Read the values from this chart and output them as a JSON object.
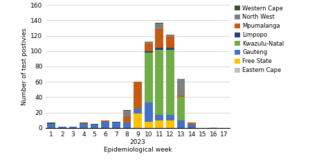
{
  "weeks": [
    1,
    2,
    3,
    4,
    5,
    6,
    7,
    8,
    9,
    10,
    11,
    12,
    13,
    14,
    15,
    16,
    17
  ],
  "provinces": [
    "Eastern Cape",
    "Free State",
    "Gauteng",
    "Kwazulu-Natal",
    "Limpopo",
    "Mpumalanga",
    "North West",
    "Western Cape"
  ],
  "colors": [
    "#bfbfbf",
    "#ffc000",
    "#4472c4",
    "#70ad47",
    "#264478",
    "#c55a11",
    "#7f7f7f",
    "#375623"
  ],
  "data": {
    "Eastern Cape": [
      0,
      0,
      0,
      0,
      0,
      0,
      0,
      0,
      0,
      0,
      0,
      0,
      0,
      0,
      0,
      1,
      0
    ],
    "Free State": [
      0,
      0,
      0,
      0,
      0,
      0,
      0,
      0,
      19,
      8,
      10,
      10,
      0,
      0,
      0,
      0,
      0
    ],
    "Gauteng": [
      5,
      2,
      2,
      5,
      4,
      8,
      7,
      7,
      6,
      25,
      7,
      7,
      10,
      4,
      0,
      0,
      0
    ],
    "Kwazulu-Natal": [
      0,
      0,
      0,
      0,
      0,
      0,
      0,
      0,
      0,
      65,
      85,
      85,
      30,
      0,
      0,
      0,
      0
    ],
    "Limpopo": [
      0,
      0,
      0,
      0,
      0,
      0,
      0,
      0,
      0,
      2,
      2,
      2,
      0,
      0,
      0,
      0,
      0
    ],
    "Mpumalanga": [
      0,
      0,
      0,
      1,
      0,
      2,
      0,
      8,
      35,
      10,
      25,
      15,
      2,
      3,
      0,
      0,
      0
    ],
    "North West": [
      0,
      0,
      0,
      0,
      0,
      0,
      0,
      7,
      0,
      2,
      7,
      2,
      22,
      0,
      0,
      0,
      0
    ],
    "Western Cape": [
      2,
      0,
      0,
      1,
      1,
      0,
      1,
      1,
      0,
      0,
      1,
      0,
      0,
      0,
      0,
      0,
      0
    ]
  },
  "ylabel": "Number of test postivies",
  "xlabel": "Epidemiological week",
  "year_label": "2023",
  "ylim": [
    0,
    160
  ],
  "yticks": [
    0,
    20,
    40,
    60,
    80,
    100,
    120,
    140,
    160
  ],
  "grid_color": "#d9d9d9",
  "figsize": [
    4.74,
    2.37
  ],
  "dpi": 100
}
